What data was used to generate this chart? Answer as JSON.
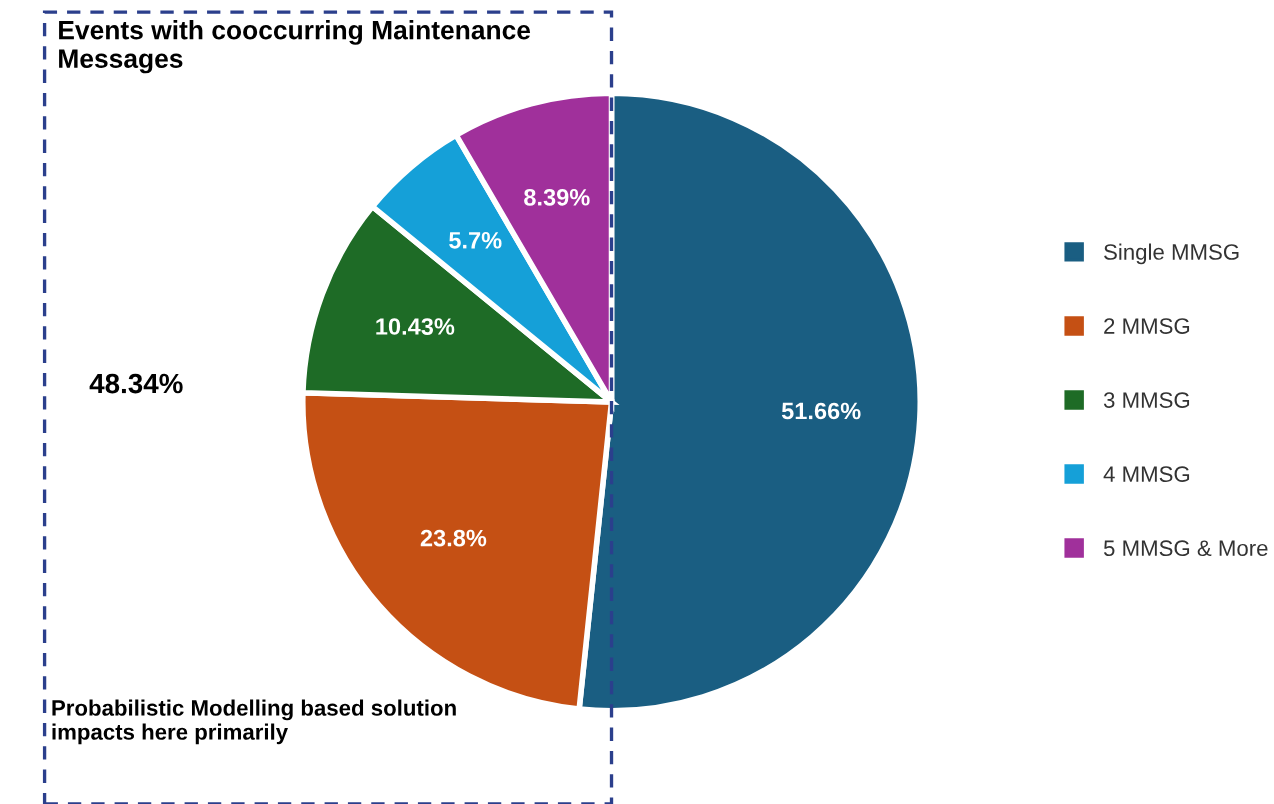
{
  "chart_data": {
    "type": "pie",
    "title": "Events with cooccurring Maintenance Messages",
    "categories": [
      "Single MMSG",
      "2 MMSG",
      "3 MMSG",
      "4 MMSG",
      "5 MMSG & More"
    ],
    "values": [
      51.66,
      23.8,
      10.43,
      5.7,
      8.39
    ],
    "colors": [
      "#1a5e82",
      "#c55014",
      "#1e6b26",
      "#15a0d8",
      "#a0309b"
    ],
    "value_labels": [
      "51.66%",
      "23.8%",
      "10.43%",
      "5.7%",
      "8.39%"
    ],
    "legend": "right",
    "annotations": [
      "48.34%",
      "Probabilistic Modelling based solution impacts here primarily"
    ]
  }
}
